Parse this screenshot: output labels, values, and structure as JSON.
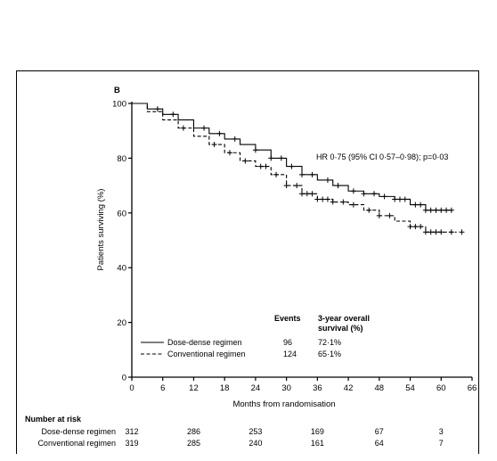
{
  "chart_data": {
    "type": "line",
    "panel_label": "B",
    "xlabel": "Months from randomisation",
    "ylabel": "Patients surviving (%)",
    "xlim": [
      0,
      66
    ],
    "ylim": [
      0,
      100
    ],
    "xticks": [
      0,
      6,
      12,
      18,
      24,
      30,
      36,
      42,
      48,
      54,
      60,
      66
    ],
    "yticks": [
      0,
      20,
      40,
      60,
      80,
      100
    ],
    "annotation": "HR 0·75 (95% CI 0·57–0·98); p=0·03",
    "legend": {
      "header_events": "Events",
      "header_survival_line1": "3-year overall",
      "header_survival_line2": "survival (%)"
    },
    "series": [
      {
        "name": "Dose-dense regimen",
        "style": "solid",
        "events": "96",
        "survival_3yr": "72·1%",
        "x": [
          0,
          3,
          6,
          9,
          12,
          15,
          18,
          21,
          24,
          27,
          30,
          33,
          36,
          39,
          42,
          45,
          48,
          51,
          54,
          57,
          60,
          62
        ],
        "y": [
          100,
          98,
          96,
          94,
          91,
          89,
          87,
          85,
          83,
          80,
          77,
          74,
          72,
          70,
          68,
          67,
          66,
          65,
          63,
          61,
          61,
          61
        ],
        "censor_x": [
          5,
          8,
          14,
          17,
          20,
          24,
          27,
          29,
          31,
          33,
          35,
          38,
          40,
          43,
          45,
          47,
          49,
          51,
          52,
          53,
          55,
          56,
          57,
          58,
          59,
          60,
          61,
          62
        ]
      },
      {
        "name": "Conventional regimen",
        "style": "dashed",
        "events": "124",
        "survival_3yr": "65·1%",
        "x": [
          0,
          3,
          6,
          9,
          12,
          15,
          18,
          21,
          24,
          27,
          30,
          33,
          36,
          39,
          42,
          45,
          48,
          51,
          54,
          57,
          60,
          63
        ],
        "y": [
          100,
          97,
          94,
          91,
          88,
          85,
          82,
          79,
          77,
          74,
          70,
          67,
          65,
          64,
          63,
          61,
          59,
          57,
          55,
          53,
          53,
          53
        ],
        "censor_x": [
          10,
          16,
          19,
          22,
          25,
          26,
          28,
          30,
          32,
          33,
          34,
          35,
          36,
          37,
          38,
          39,
          41,
          43,
          46,
          48,
          50,
          54,
          55,
          56,
          57,
          58,
          59,
          60,
          62,
          64
        ]
      }
    ],
    "number_at_risk": {
      "title": "Number at risk",
      "x": [
        0,
        12,
        24,
        36,
        48,
        60
      ],
      "rows": [
        {
          "label": "Dose-dense regimen",
          "values": [
            "312",
            "286",
            "253",
            "169",
            "67",
            "3"
          ]
        },
        {
          "label": "Conventional regimen",
          "values": [
            "319",
            "285",
            "240",
            "161",
            "64",
            "7"
          ]
        }
      ]
    }
  }
}
